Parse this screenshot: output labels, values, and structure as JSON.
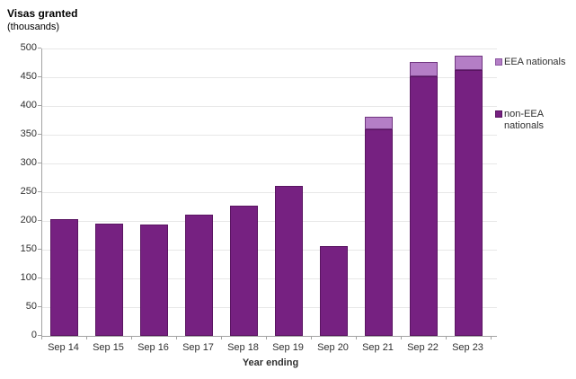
{
  "header": {
    "title": "Visas granted",
    "subtitle": "(thousands)"
  },
  "chart_data": {
    "type": "bar",
    "stacked": true,
    "title": "Visas granted (thousands)",
    "xlabel": "Year ending",
    "ylabel": "Visas granted (thousands)",
    "categories": [
      "Sep 14",
      "Sep 15",
      "Sep 16",
      "Sep 17",
      "Sep 18",
      "Sep 19",
      "Sep 20",
      "Sep 21",
      "Sep 22",
      "Sep 23"
    ],
    "series": [
      {
        "name": "non-EEA nationals",
        "color": "#762181",
        "border_color": "#5a1562",
        "values": [
          203,
          196,
          194,
          211,
          226,
          261,
          157,
          359,
          452,
          463
        ]
      },
      {
        "name": "EEA nationals",
        "color": "#b47ec6",
        "border_color": "#703580",
        "values": [
          0,
          0,
          0,
          0,
          0,
          0,
          0,
          22,
          24,
          24
        ]
      }
    ],
    "ylim": [
      0,
      500
    ],
    "yticks": [
      0,
      50,
      100,
      150,
      200,
      250,
      300,
      350,
      400,
      450,
      500
    ],
    "grid": true,
    "legend_position": "right"
  },
  "legend": {
    "items": [
      {
        "label": "EEA nationals",
        "color": "#b47ec6",
        "border_color": "#8a56a0"
      },
      {
        "label": "non-EEA nationals",
        "color": "#762181",
        "border_color": "#5a1562"
      }
    ]
  },
  "axis": {
    "x_title": "Year ending"
  }
}
